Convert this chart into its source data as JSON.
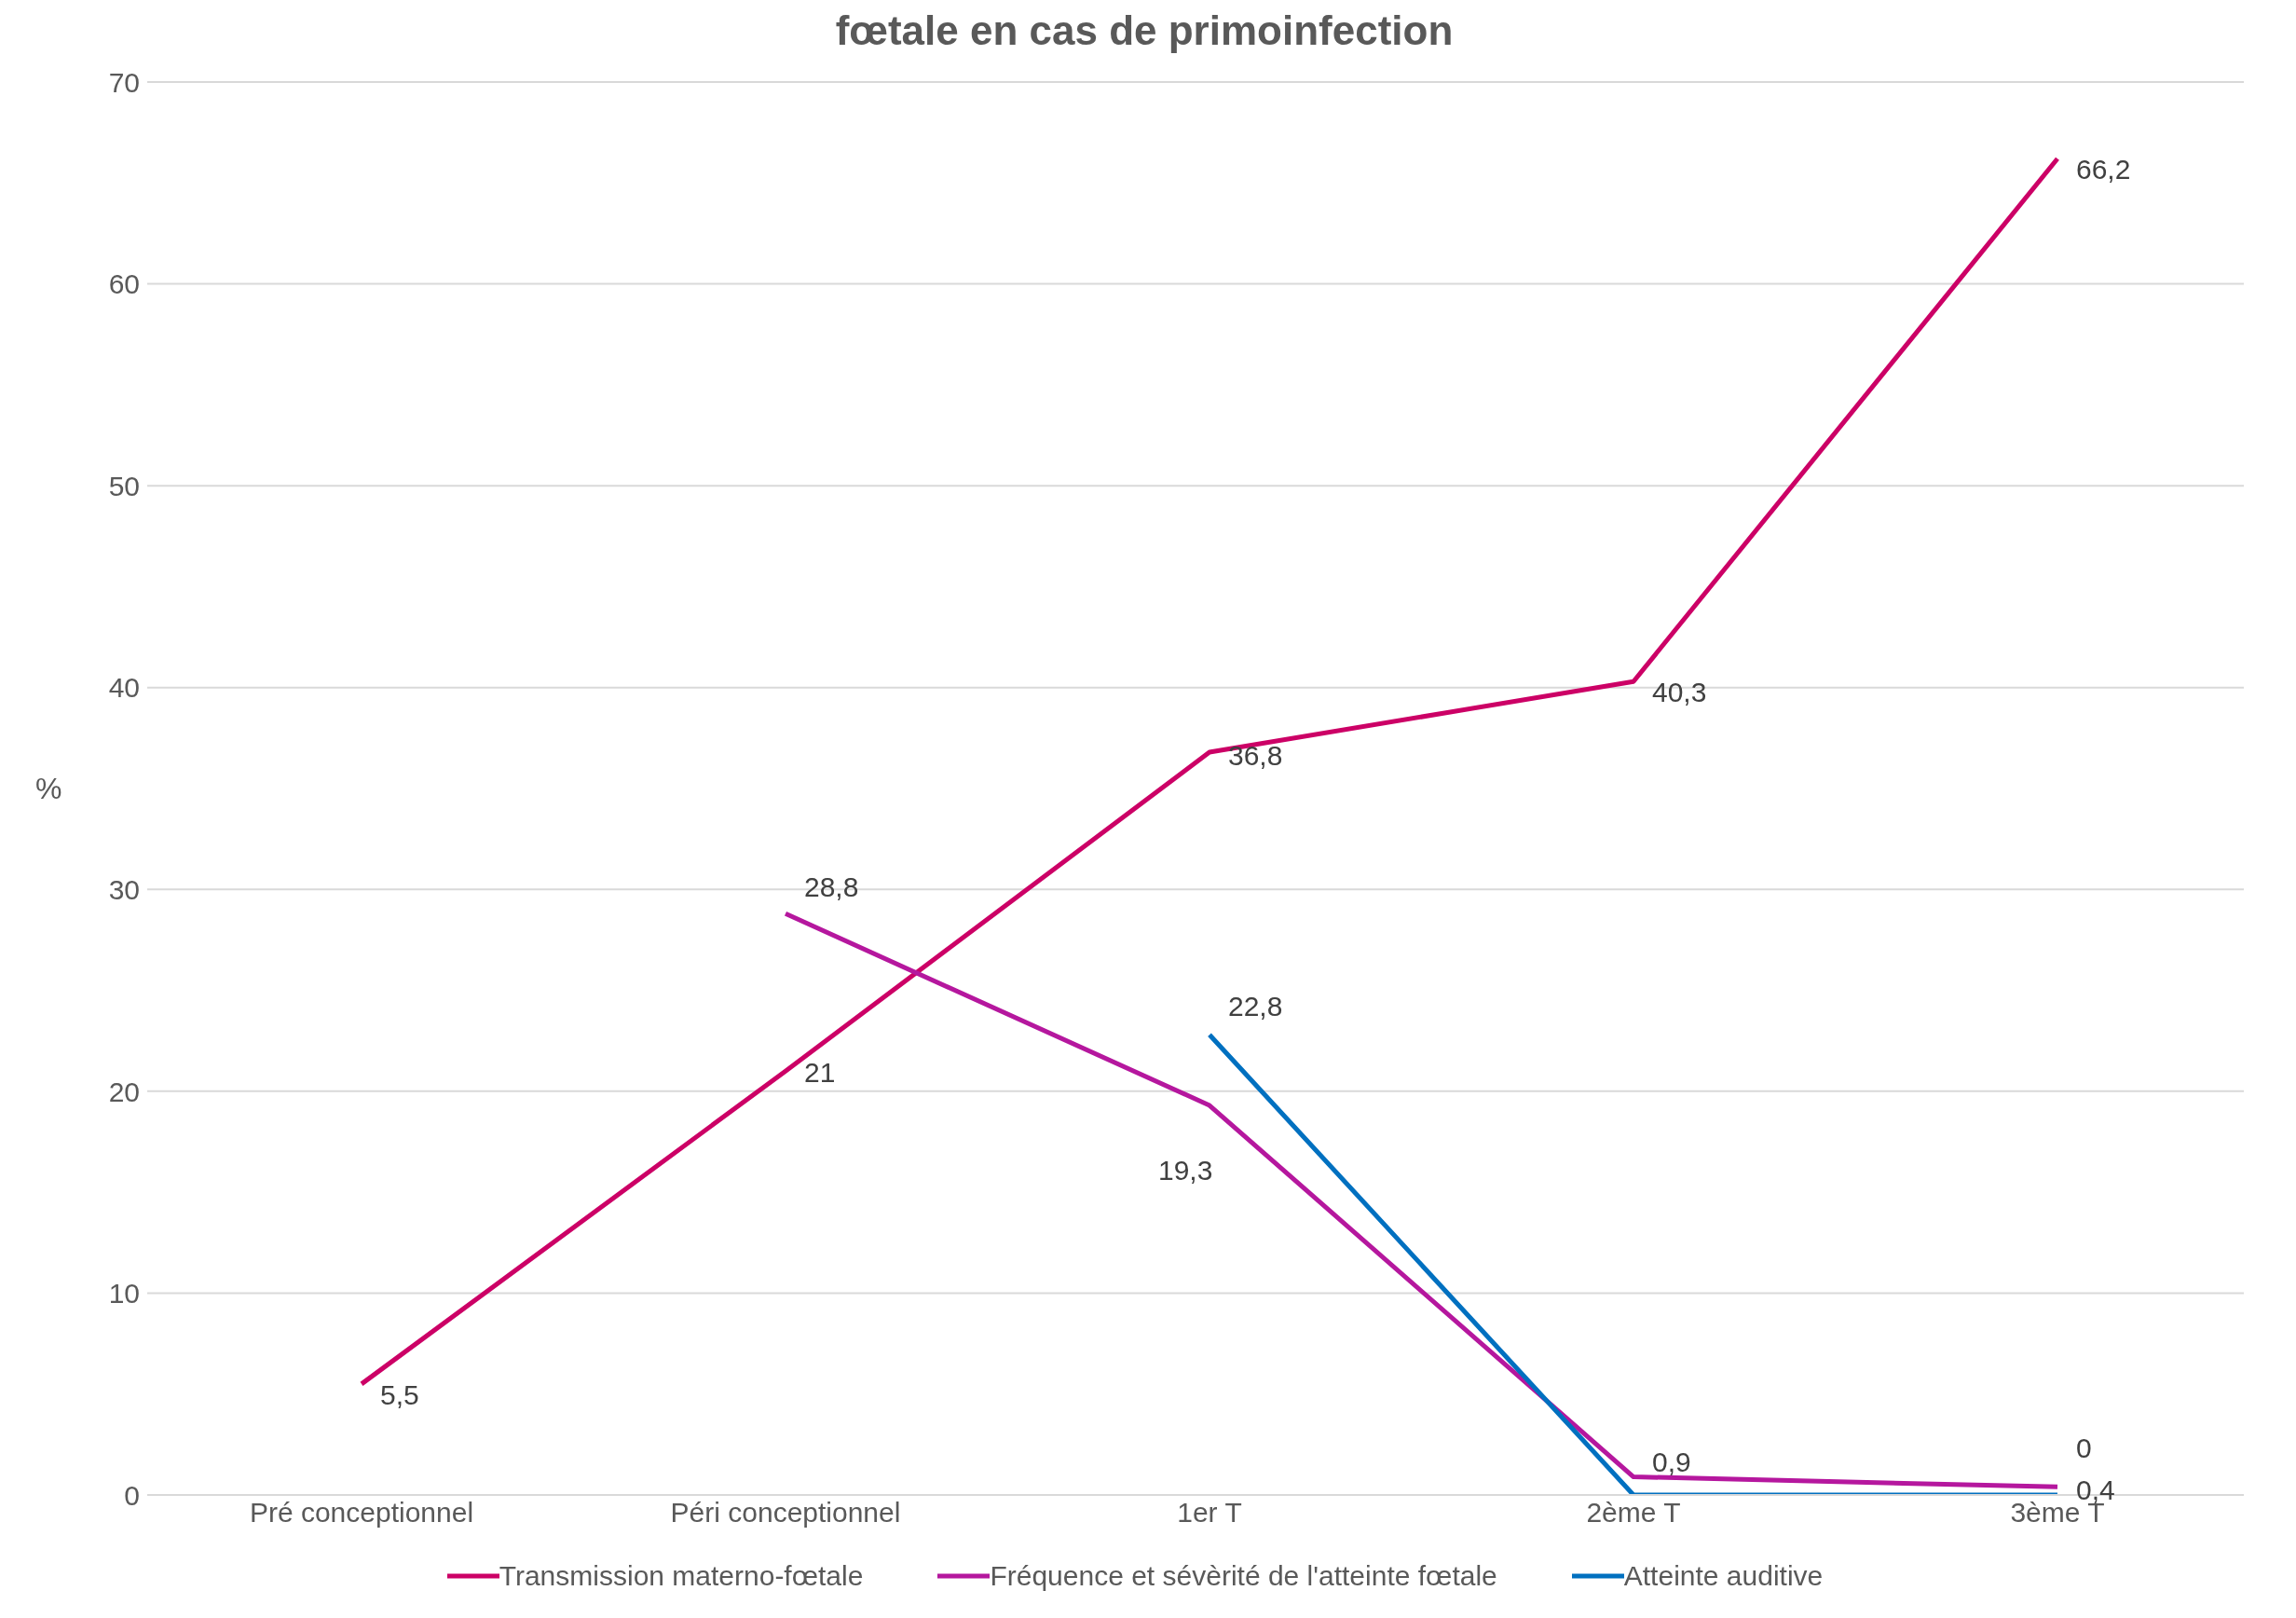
{
  "chart_data": {
    "type": "line",
    "title": "fœtale en cas de primoinfection",
    "ylabel": "%",
    "categories": [
      "Pré conceptionnel",
      "Péri conceptionnel",
      "1er T",
      "2ème T",
      "3ème T"
    ],
    "series": [
      {
        "name": "Transmission materno-fœtale",
        "color": "#cc0066",
        "values": [
          5.5,
          21,
          36.8,
          40.3,
          66.2
        ],
        "value_labels": [
          "5,5",
          "21",
          "36,8",
          "40,3",
          "66,2"
        ]
      },
      {
        "name": "Fréquence et sévèrité de l'atteinte fœtale",
        "color": "#b5179e",
        "values": [
          null,
          28.8,
          19.3,
          0.9,
          0.4
        ],
        "value_labels": [
          null,
          "28,8",
          "19,3",
          "0,9",
          "0,4"
        ]
      },
      {
        "name": "Atteinte auditive",
        "color": "#0070c0",
        "values": [
          null,
          null,
          22.8,
          0,
          0
        ],
        "value_labels": [
          null,
          null,
          "22,8",
          null,
          "0"
        ]
      }
    ],
    "ylim": [
      0,
      70
    ],
    "yticks": [
      0,
      10,
      20,
      30,
      40,
      50,
      60,
      70
    ],
    "grid": "y",
    "legend": "bottom",
    "marker": "none",
    "line_style": "solid"
  }
}
